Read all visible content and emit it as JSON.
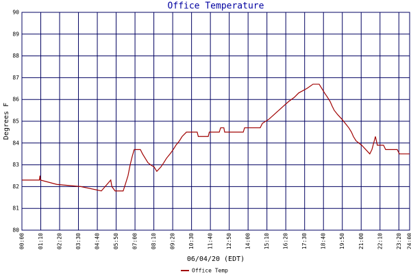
{
  "chart_data": {
    "type": "line",
    "title": "Office Temperature",
    "ylabel": "Degrees F",
    "xlabel": "06/04/20 (EDT)",
    "xlim": [
      "00:00",
      "24:00"
    ],
    "xticks": [
      "00:00",
      "01:10",
      "02:20",
      "03:30",
      "04:40",
      "05:50",
      "07:00",
      "08:10",
      "09:20",
      "10:30",
      "11:40",
      "12:50",
      "14:00",
      "15:10",
      "16:20",
      "17:30",
      "18:40",
      "19:50",
      "21:00",
      "22:10",
      "23:20",
      "24:00"
    ],
    "ylim": [
      80,
      90
    ],
    "yticks": [
      80,
      81,
      82,
      83,
      84,
      85,
      86,
      87,
      88,
      89,
      90
    ],
    "grid": true,
    "x": [
      "00:00",
      "01:05",
      "01:07",
      "01:09",
      "02:10",
      "03:39",
      "04:55",
      "05:30",
      "05:34",
      "05:46",
      "06:16",
      "06:24",
      "06:34",
      "06:42",
      "06:50",
      "06:57",
      "07:20",
      "07:28",
      "07:38",
      "07:48",
      "07:58",
      "08:11",
      "08:21",
      "08:36",
      "08:47",
      "08:57",
      "09:10",
      "09:22",
      "09:32",
      "09:45",
      "09:55",
      "10:11",
      "10:51",
      "10:55",
      "11:32",
      "11:36",
      "12:13",
      "12:18",
      "12:30",
      "12:33",
      "13:42",
      "13:47",
      "14:45",
      "14:53",
      "15:18",
      "15:36",
      "15:54",
      "16:12",
      "16:30",
      "16:52",
      "17:08",
      "17:38",
      "18:01",
      "18:24",
      "18:34",
      "18:44",
      "18:55",
      "19:05",
      "19:12",
      "19:20",
      "19:33",
      "19:48",
      "20:01",
      "20:14",
      "20:24",
      "20:31",
      "20:41",
      "21:02",
      "21:17",
      "21:32",
      "21:40",
      "21:53",
      "22:00",
      "22:23",
      "22:31",
      "23:14",
      "23:22",
      "24:00"
    ],
    "series": [
      {
        "name": "Office Temp",
        "color": "#a00000",
        "values": [
          82.3,
          82.3,
          82.5,
          82.3,
          82.1,
          82.0,
          81.8,
          82.3,
          82.0,
          81.8,
          81.8,
          82.1,
          82.5,
          83.0,
          83.4,
          83.7,
          83.7,
          83.5,
          83.3,
          83.1,
          83.0,
          82.9,
          82.7,
          82.9,
          83.1,
          83.3,
          83.5,
          83.7,
          83.9,
          84.1,
          84.3,
          84.5,
          84.5,
          84.3,
          84.3,
          84.5,
          84.5,
          84.7,
          84.7,
          84.5,
          84.5,
          84.7,
          84.7,
          84.9,
          85.1,
          85.3,
          85.5,
          85.7,
          85.9,
          86.1,
          86.3,
          86.5,
          86.7,
          86.7,
          86.5,
          86.3,
          86.1,
          85.9,
          85.7,
          85.5,
          85.3,
          85.1,
          84.9,
          84.7,
          84.5,
          84.3,
          84.1,
          83.9,
          83.7,
          83.5,
          83.7,
          84.3,
          83.9,
          83.9,
          83.7,
          83.7,
          83.5,
          83.5
        ]
      }
    ]
  }
}
